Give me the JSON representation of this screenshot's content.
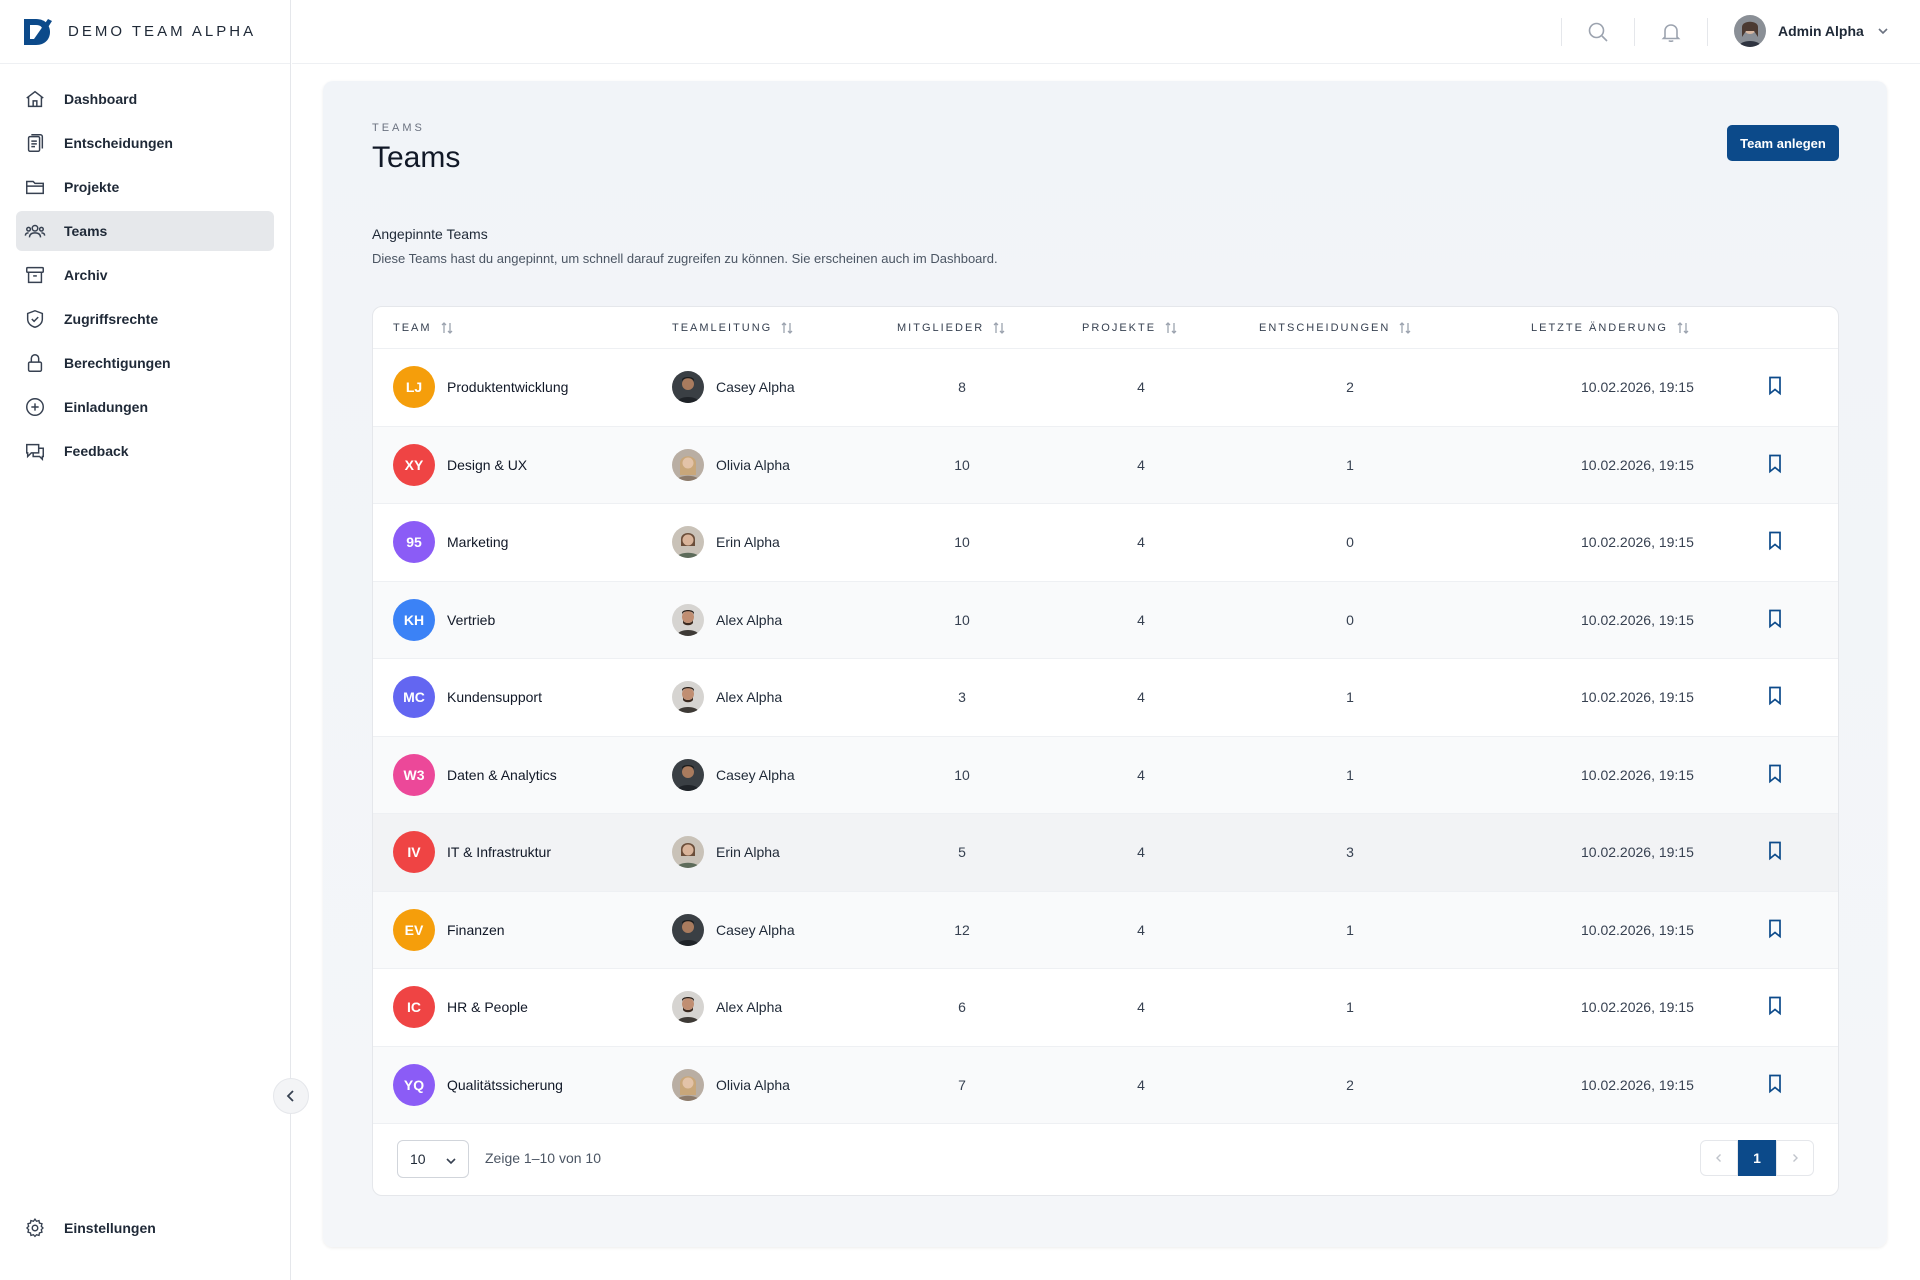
{
  "app": {
    "brand": "DEMO TEAM ALPHA"
  },
  "sidebar": {
    "items": [
      {
        "label": "Dashboard",
        "icon": "home-icon"
      },
      {
        "label": "Entscheidungen",
        "icon": "clipboard-icon"
      },
      {
        "label": "Projekte",
        "icon": "folder-icon"
      },
      {
        "label": "Teams",
        "icon": "users-icon",
        "active": true
      },
      {
        "label": "Archiv",
        "icon": "archive-icon"
      },
      {
        "label": "Zugriffsrechte",
        "icon": "shield-icon"
      },
      {
        "label": "Berechtigungen",
        "icon": "lock-icon"
      },
      {
        "label": "Einladungen",
        "icon": "plus-circle-icon"
      },
      {
        "label": "Feedback",
        "icon": "chat-icon"
      }
    ],
    "settings": {
      "label": "Einstellungen",
      "icon": "gear-icon"
    }
  },
  "topbar": {
    "user_name": "Admin Alpha"
  },
  "page": {
    "eyebrow": "TEAMS",
    "title": "Teams",
    "create_button": "Team anlegen",
    "section_title": "Angepinnte Teams",
    "section_desc": "Diese Teams hast du angepinnt, um schnell darauf zugreifen zu können. Sie erscheinen auch im Dashboard."
  },
  "table": {
    "headers": {
      "team": "TEAM",
      "lead": "TEAMLEITUNG",
      "members": "MITGLIEDER",
      "projects": "PROJEKTE",
      "decisions": "ENTSCHEIDUNGEN",
      "updated": "LETZTE ÄNDERUNG"
    },
    "rows": [
      {
        "initials": "LJ",
        "color": "#f59e0b",
        "name": "Produktentwicklung",
        "lead": "Casey Alpha",
        "members": "8",
        "projects": "4",
        "decisions": "2",
        "updated": "10.02.2026, 19:15"
      },
      {
        "initials": "XY",
        "color": "#ef4444",
        "name": "Design & UX",
        "lead": "Olivia Alpha",
        "members": "10",
        "projects": "4",
        "decisions": "1",
        "updated": "10.02.2026, 19:15"
      },
      {
        "initials": "95",
        "color": "#8b5cf6",
        "name": "Marketing",
        "lead": "Erin Alpha",
        "members": "10",
        "projects": "4",
        "decisions": "0",
        "updated": "10.02.2026, 19:15"
      },
      {
        "initials": "KH",
        "color": "#3b82f6",
        "name": "Vertrieb",
        "lead": "Alex Alpha",
        "members": "10",
        "projects": "4",
        "decisions": "0",
        "updated": "10.02.2026, 19:15"
      },
      {
        "initials": "MC",
        "color": "#6366f1",
        "name": "Kundensupport",
        "lead": "Alex Alpha",
        "members": "3",
        "projects": "4",
        "decisions": "1",
        "updated": "10.02.2026, 19:15"
      },
      {
        "initials": "W3",
        "color": "#ec4899",
        "name": "Daten & Analytics",
        "lead": "Casey Alpha",
        "members": "10",
        "projects": "4",
        "decisions": "1",
        "updated": "10.02.2026, 19:15"
      },
      {
        "initials": "IV",
        "color": "#ef4444",
        "name": "IT & Infrastruktur",
        "lead": "Erin Alpha",
        "members": "5",
        "projects": "4",
        "decisions": "3",
        "updated": "10.02.2026, 19:15"
      },
      {
        "initials": "EV",
        "color": "#f59e0b",
        "name": "Finanzen",
        "lead": "Casey Alpha",
        "members": "12",
        "projects": "4",
        "decisions": "1",
        "updated": "10.02.2026, 19:15"
      },
      {
        "initials": "IC",
        "color": "#ef4444",
        "name": "HR & People",
        "lead": "Alex Alpha",
        "members": "6",
        "projects": "4",
        "decisions": "1",
        "updated": "10.02.2026, 19:15"
      },
      {
        "initials": "YQ",
        "color": "#8b5cf6",
        "name": "Qualitätssicherung",
        "lead": "Olivia Alpha",
        "members": "7",
        "projects": "4",
        "decisions": "2",
        "updated": "10.02.2026, 19:15"
      }
    ]
  },
  "footer": {
    "page_size": "10",
    "range_text": "Zeige 1–10 von 10",
    "current_page": "1"
  }
}
